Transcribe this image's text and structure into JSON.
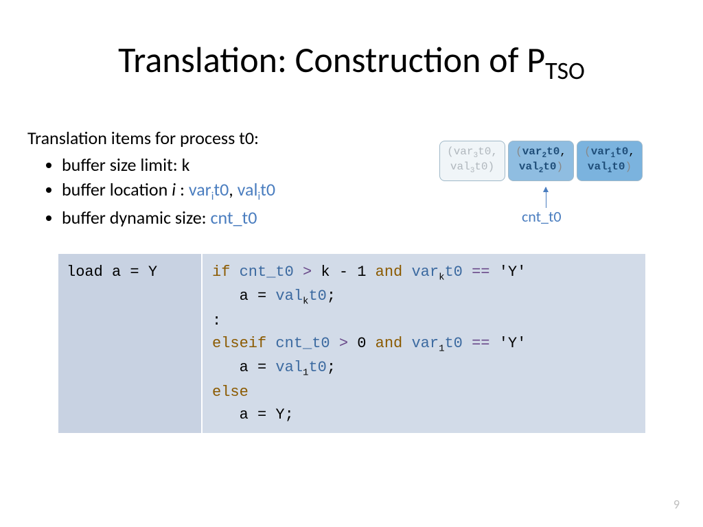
{
  "title_main": "Translation: Construction of P",
  "title_sub": "TSO",
  "intro": "Translation items for process t0:",
  "bullet1": "buffer size limit: k",
  "bullet2_a": "buffer location ",
  "bullet2_i": "i",
  "bullet2_b": " :  ",
  "bullet2_var_pre": "var",
  "bullet2_var_sub": "i",
  "bullet2_var_post": "t0",
  "bullet2_sep": ", ",
  "bullet2_val_pre": "val",
  "bullet2_val_sub": "i",
  "bullet2_val_post": "t0",
  "bullet3_a": "buffer dynamic size: ",
  "bullet3_b": "cnt_t0",
  "buffer": {
    "cells": [
      {
        "style": "light",
        "var_pre": "var",
        "var_sub": "3",
        "var_post": "t0",
        "val_pre": "val",
        "val_sub": "3",
        "val_post": "t0"
      },
      {
        "style": "med",
        "var_pre": "var",
        "var_sub": "2",
        "var_post": "t0",
        "val_pre": "val",
        "val_sub": "2",
        "val_post": "t0"
      },
      {
        "style": "dark",
        "var_pre": "var",
        "var_sub": "1",
        "var_post": "t0",
        "val_pre": "val",
        "val_sub": "1",
        "val_post": "t0"
      }
    ],
    "cnt_label": "cnt_t0"
  },
  "code_left": "load a = Y",
  "code": {
    "if": "if",
    "elseif": "elseif",
    "else": "else",
    "and": "and",
    "cnt": "cnt_t0",
    "gt": ">",
    "eq": "==",
    "km1": "k - 1",
    "zero": "0",
    "y_lit": "'Y'",
    "var_pre": "var",
    "val_pre": "val",
    "sub_k": "k",
    "sub_1": "1",
    "t0": "t0",
    "a_eq": "a = ",
    "semi": ";",
    "colon": ":",
    "indent": "   ",
    "sp": " ",
    "a_eq_Y": "a = Y;"
  },
  "page": "9",
  "colors": {
    "blue": "#4a7dbf",
    "kw": "#8b5a00",
    "var": "#3c6aa0",
    "op": "#6a4a8a",
    "code_left_bg": "#c8d2e2",
    "code_right_bg": "#d2dbe8",
    "cell_light": "#f0f5f8",
    "cell_med": "#8fbde1",
    "cell_dark": "#7bb3de"
  }
}
